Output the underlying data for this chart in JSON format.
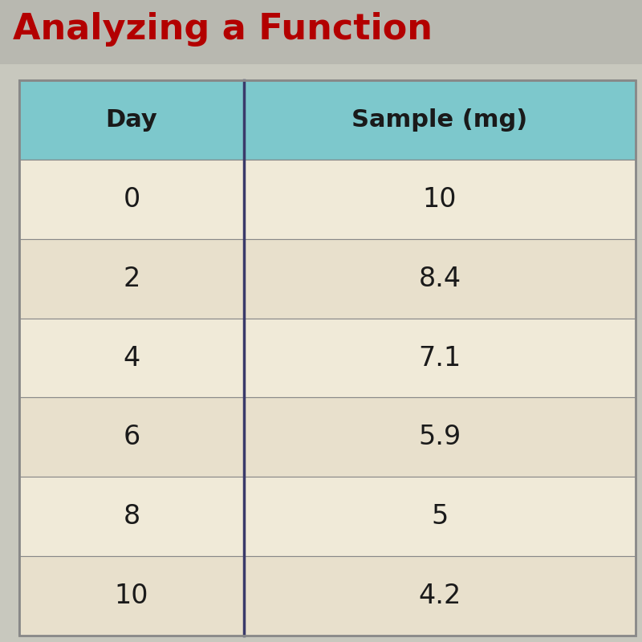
{
  "title": "Analyzing a Function",
  "title_color": "#b30000",
  "title_fontsize": 32,
  "col_headers": [
    "Day",
    "Sample (mg)"
  ],
  "rows": [
    [
      "0",
      "10"
    ],
    [
      "2",
      "8.4"
    ],
    [
      "4",
      "7.1"
    ],
    [
      "6",
      "5.9"
    ],
    [
      "8",
      "5"
    ],
    [
      "10",
      "4.2"
    ]
  ],
  "header_bg_color": "#7dc8cc",
  "row_bg_color": "#f0ead8",
  "row_bg_alt": "#e8e0cc",
  "border_color": "#888888",
  "divider_color": "#3a3a6a",
  "text_color": "#1a1a1a",
  "header_fontsize": 22,
  "cell_fontsize": 24,
  "page_bg_color": "#c8c8be",
  "title_strip_bg": "#b8b8b0",
  "table_outer_bg": "#d8d0c0"
}
